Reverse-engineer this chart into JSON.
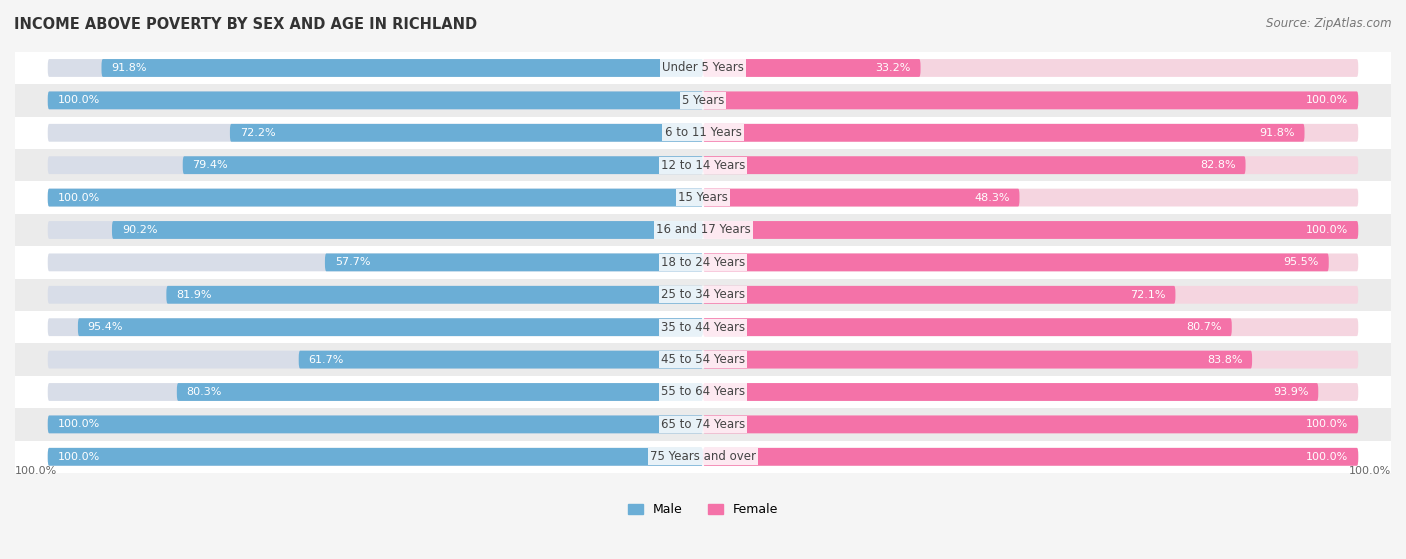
{
  "title": "INCOME ABOVE POVERTY BY SEX AND AGE IN RICHLAND",
  "source": "Source: ZipAtlas.com",
  "categories": [
    "Under 5 Years",
    "5 Years",
    "6 to 11 Years",
    "12 to 14 Years",
    "15 Years",
    "16 and 17 Years",
    "18 to 24 Years",
    "25 to 34 Years",
    "35 to 44 Years",
    "45 to 54 Years",
    "55 to 64 Years",
    "65 to 74 Years",
    "75 Years and over"
  ],
  "male_values": [
    91.8,
    100.0,
    72.2,
    79.4,
    100.0,
    90.2,
    57.7,
    81.9,
    95.4,
    61.7,
    80.3,
    100.0,
    100.0
  ],
  "female_values": [
    33.2,
    100.0,
    91.8,
    82.8,
    48.3,
    100.0,
    95.5,
    72.1,
    80.7,
    83.8,
    93.9,
    100.0,
    100.0
  ],
  "male_color": "#6baed6",
  "female_color": "#f472a8",
  "male_label": "Male",
  "female_label": "Female",
  "bar_height": 0.55,
  "bg_color": "#f5f5f5",
  "row_colors": [
    "#ffffff",
    "#ebebeb"
  ],
  "title_fontsize": 10.5,
  "label_fontsize": 8.5,
  "value_fontsize": 8,
  "legend_fontsize": 9,
  "source_fontsize": 8.5,
  "axis_max": 100.0
}
